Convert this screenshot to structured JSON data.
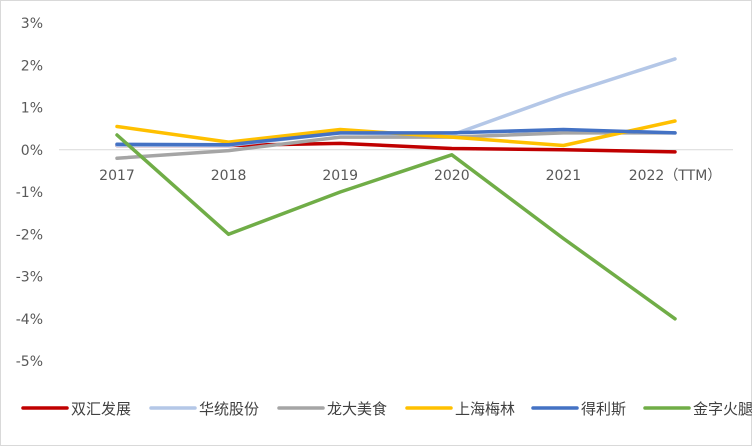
{
  "chart_data": {
    "type": "line",
    "categories": [
      "2017",
      "2018",
      "2019",
      "2020",
      "2021",
      "2022（TTM）"
    ],
    "ylim": [
      -5,
      3
    ],
    "yticks": [
      3,
      2,
      1,
      0,
      -1,
      -2,
      -3,
      -4,
      -5
    ],
    "ytick_labels": [
      "3%",
      "2%",
      "1%",
      "0%",
      "-1%",
      "-2%",
      "-3%",
      "-4%",
      "-5%"
    ],
    "grid": false,
    "legend_position": "bottom",
    "series": [
      {
        "name": "双汇发展",
        "color": "#c00000",
        "values": [
          0.1,
          0.1,
          0.15,
          0.03,
          0.0,
          -0.05
        ]
      },
      {
        "name": "华统股份",
        "color": "#b4c7e7",
        "values": [
          0.1,
          0.1,
          0.4,
          0.35,
          1.3,
          2.15
        ]
      },
      {
        "name": "龙大美食",
        "color": "#a5a5a5",
        "values": [
          -0.2,
          -0.02,
          0.3,
          0.3,
          0.4,
          0.4
        ]
      },
      {
        "name": "上海梅林",
        "color": "#ffc000",
        "values": [
          0.55,
          0.18,
          0.48,
          0.3,
          0.1,
          0.68
        ]
      },
      {
        "name": "得利斯",
        "color": "#4472c4",
        "values": [
          0.13,
          0.12,
          0.4,
          0.4,
          0.48,
          0.4
        ]
      },
      {
        "name": "金字火腿",
        "color": "#70ad47",
        "values": [
          0.35,
          -2.0,
          -1.0,
          -0.12,
          -2.1,
          -4.0
        ]
      }
    ]
  }
}
